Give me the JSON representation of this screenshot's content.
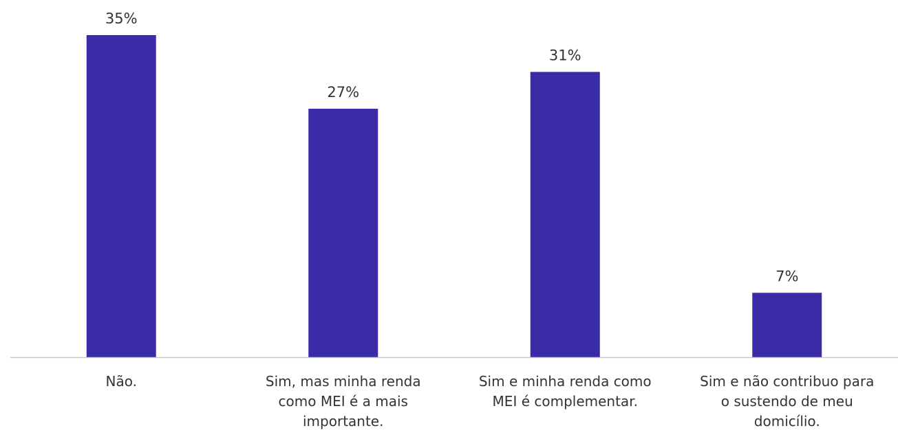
{
  "chart_data": {
    "type": "bar",
    "categories": [
      "Não.",
      "Sim, mas minha renda como MEI é a mais importante.",
      "Sim e minha renda como MEI é complementar.",
      "Sim e não contribuo para o sustendo de meu domicílio."
    ],
    "category_lines": [
      [
        "Não."
      ],
      [
        "Sim, mas minha renda",
        "como MEI é a mais",
        "importante."
      ],
      [
        "Sim e minha renda como",
        "MEI é complementar."
      ],
      [
        "Sim e não contribuo para",
        "o sustendo de meu",
        "domicílio."
      ]
    ],
    "values": [
      35,
      27,
      31,
      7
    ],
    "value_labels": [
      "35%",
      "27%",
      "31%",
      "7%"
    ],
    "ylim": [
      0,
      35
    ],
    "grid": false,
    "legend": "none",
    "colors": {
      "bar": "#3a2ca6",
      "axis": "#c8c8c8"
    }
  }
}
